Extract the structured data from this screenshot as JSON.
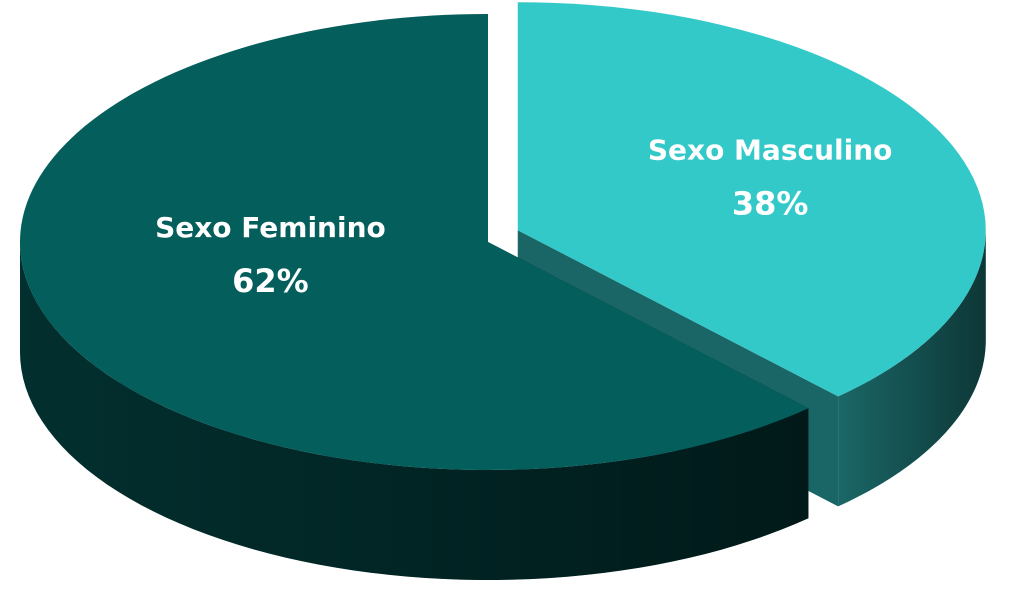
{
  "chart_data": {
    "type": "pie",
    "categories": [
      "Sexo Feminino",
      "Sexo Masculino"
    ],
    "values": [
      62,
      38
    ],
    "value_labels": [
      "62%",
      "38%"
    ],
    "colors": [
      "#035e5c",
      "#33c9c9"
    ]
  }
}
